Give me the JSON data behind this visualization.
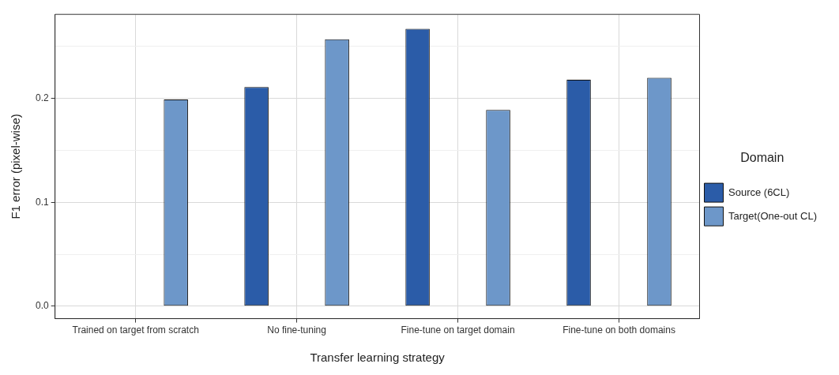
{
  "chart_data": {
    "type": "bar",
    "xlabel": "Transfer learning strategy",
    "ylabel": "F1 error (pixel-wise)",
    "legend_title": "Domain",
    "legend": "right",
    "grid": true,
    "categories": [
      "Trained on target from scratch",
      "No fine-tuning",
      "Fine-tune on target domain",
      "Fine-tune on both domains"
    ],
    "series": [
      {
        "name": "Source (6CL)",
        "color": "#2b5ca8",
        "values": [
          null,
          0.211,
          0.267,
          0.218
        ]
      },
      {
        "name": "Target(One-out CL)",
        "color": "#6d97c9",
        "values": [
          0.199,
          0.257,
          0.189,
          0.22
        ]
      }
    ],
    "ylim": [
      -0.012,
      0.281
    ],
    "yticks": [
      {
        "value": 0,
        "label": "0.0"
      },
      {
        "value": 0.05,
        "label": null
      },
      {
        "value": 0.1,
        "label": "0.1"
      },
      {
        "value": 0.15,
        "label": null
      },
      {
        "value": 0.2,
        "label": "0.2"
      },
      {
        "value": 0.25,
        "label": null
      }
    ]
  }
}
